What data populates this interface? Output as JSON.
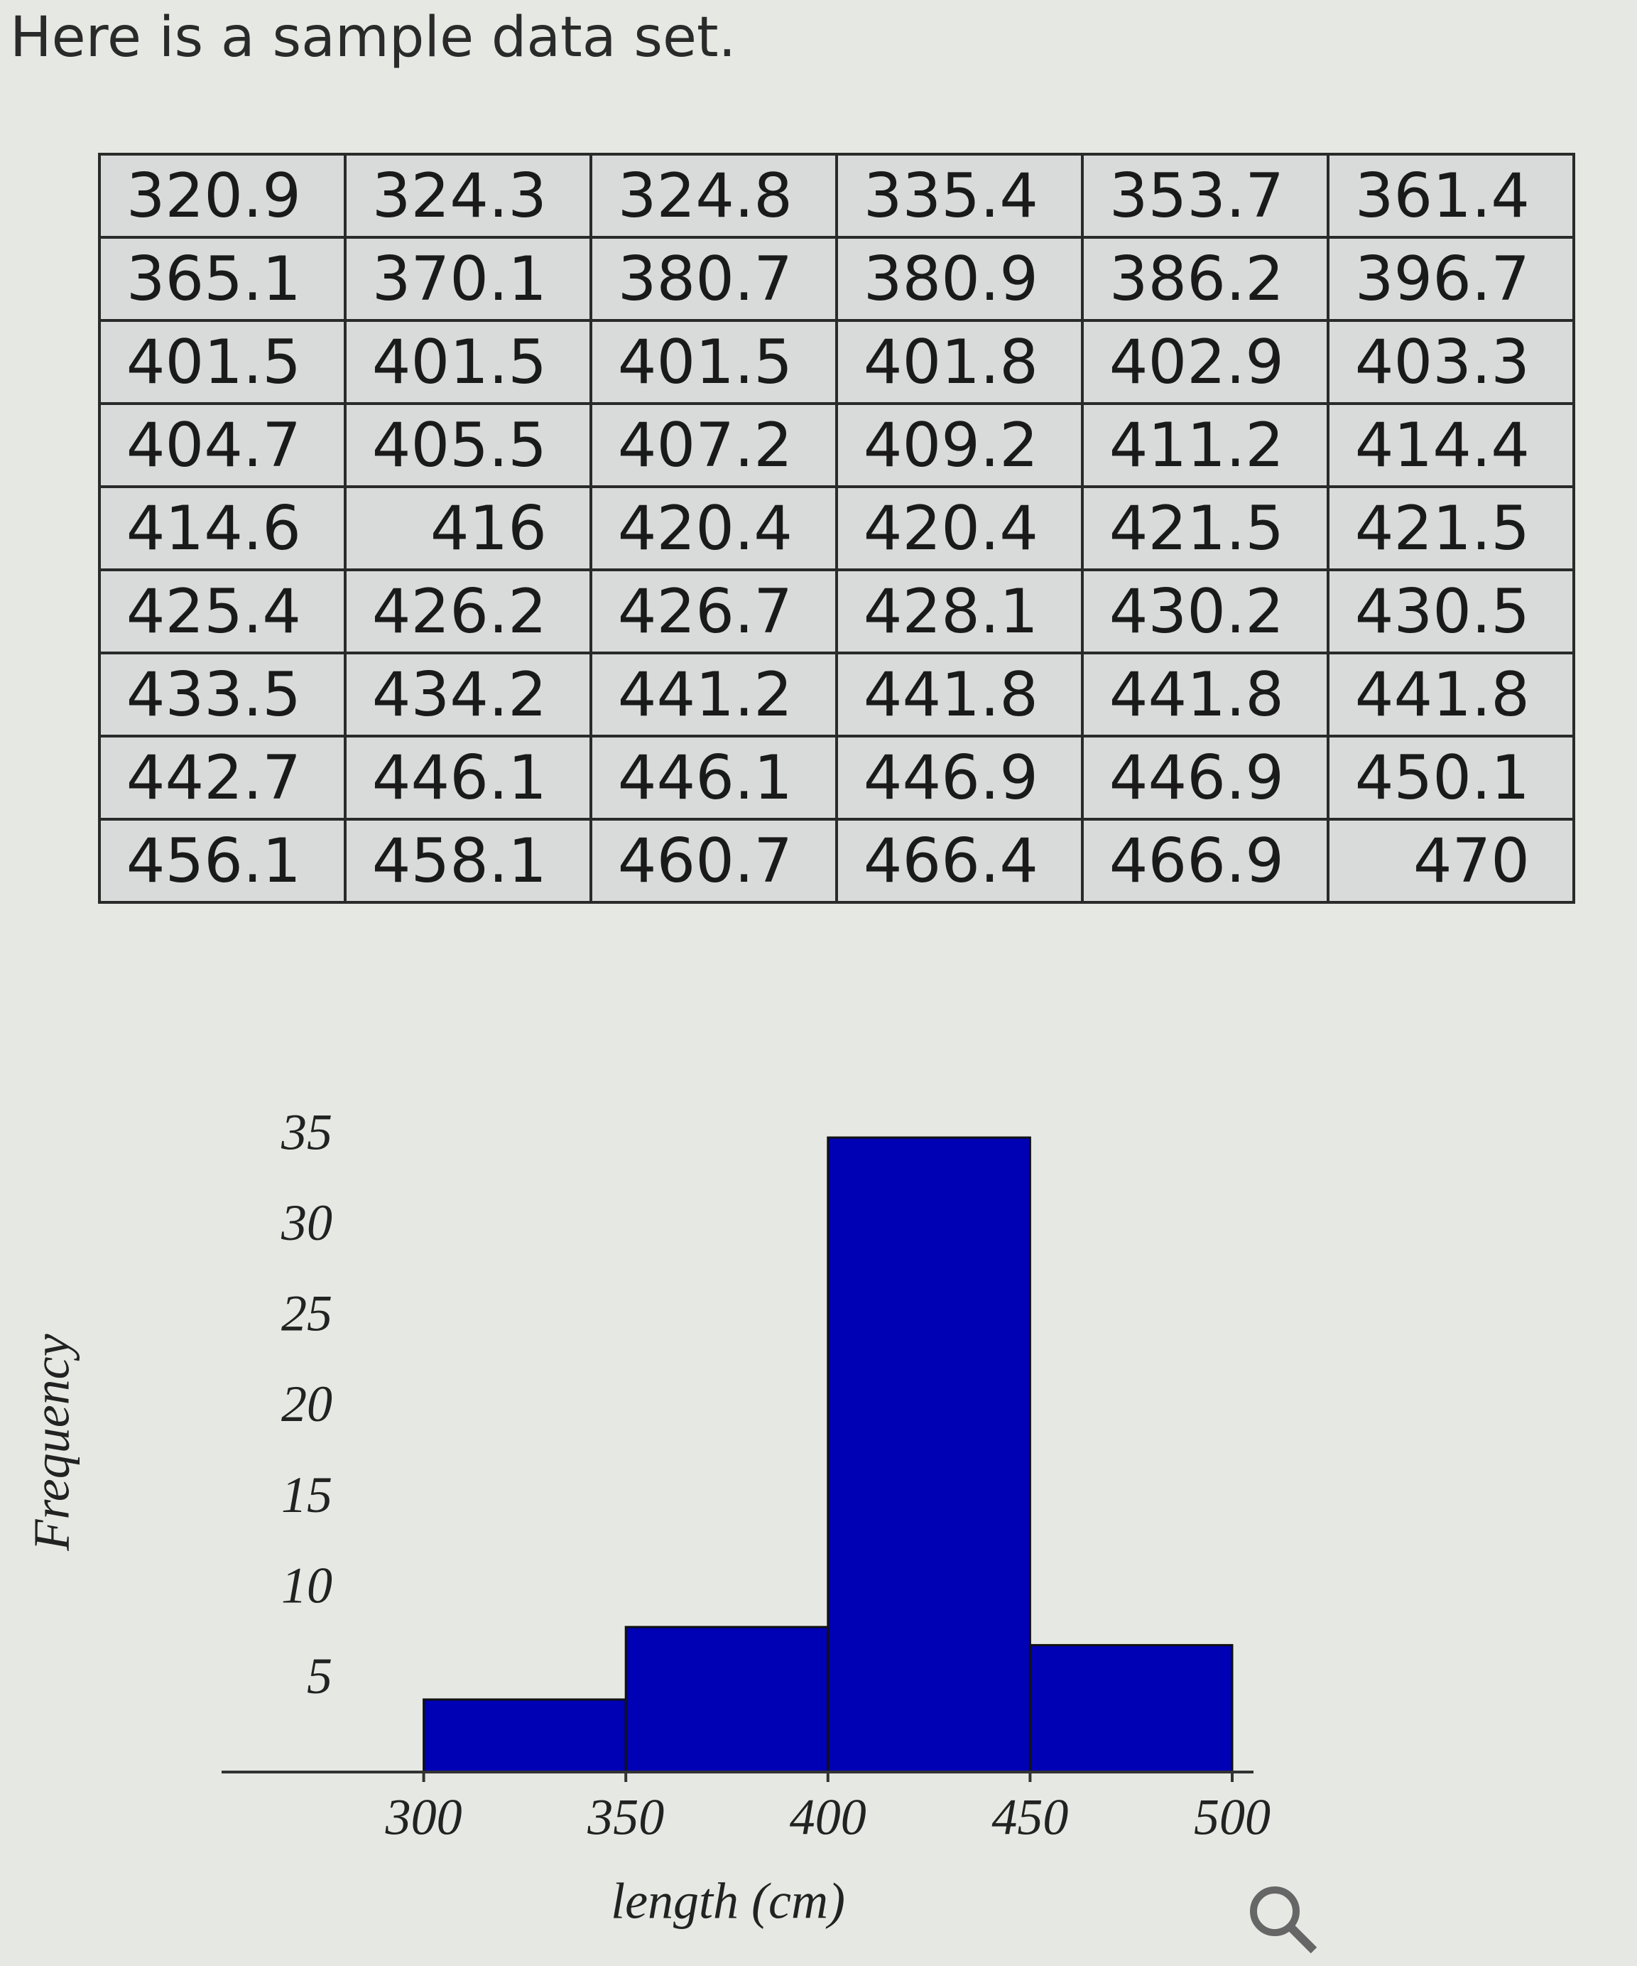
{
  "header": {
    "title": "Here is a sample data set."
  },
  "table": {
    "rows": [
      [
        "320.9",
        "324.3",
        "324.8",
        "335.4",
        "353.7",
        "361.4"
      ],
      [
        "365.1",
        "370.1",
        "380.7",
        "380.9",
        "386.2",
        "396.7"
      ],
      [
        "401.5",
        "401.5",
        "401.5",
        "401.8",
        "402.9",
        "403.3"
      ],
      [
        "404.7",
        "405.5",
        "407.2",
        "409.2",
        "411.2",
        "414.4"
      ],
      [
        "414.6",
        "416",
        "420.4",
        "420.4",
        "421.5",
        "421.5"
      ],
      [
        "425.4",
        "426.2",
        "426.7",
        "428.1",
        "430.2",
        "430.5"
      ],
      [
        "433.5",
        "434.2",
        "441.2",
        "441.8",
        "441.8",
        "441.8"
      ],
      [
        "442.7",
        "446.1",
        "446.1",
        "446.9",
        "446.9",
        "450.1"
      ],
      [
        "456.1",
        "458.1",
        "460.7",
        "466.4",
        "466.9",
        "470"
      ]
    ]
  },
  "chart_data": {
    "type": "histogram",
    "x_label": "length (cm)",
    "y_label": "Frequency",
    "bins": [
      300,
      350,
      400,
      450,
      500
    ],
    "counts": [
      4,
      8,
      35,
      7
    ],
    "color": "#0000b4",
    "xlim": [
      250,
      500
    ],
    "xticks": [
      300,
      350,
      400,
      450,
      500
    ],
    "ylim": [
      0,
      35
    ],
    "yticks": [
      5,
      10,
      15,
      20,
      25,
      30,
      35
    ]
  }
}
